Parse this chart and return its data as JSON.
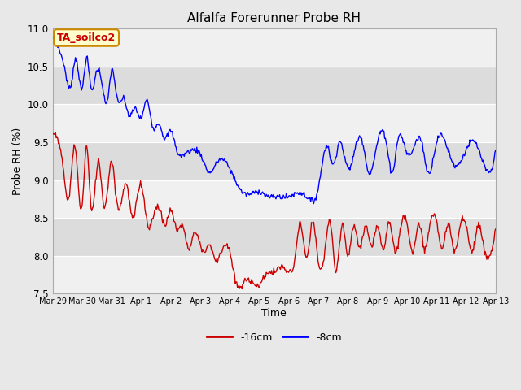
{
  "title": "Alfalfa Forerunner Probe RH",
  "ylabel": "Probe RH (%)",
  "xlabel": "Time",
  "ylim": [
    7.5,
    11.0
  ],
  "fig_bg_color": "#e8e8e8",
  "plot_bg_color": "#ffffff",
  "band_color_dark": "#dcdcdc",
  "band_color_light": "#f0f0f0",
  "legend_label_blue": "-8cm",
  "legend_label_red": "-16cm",
  "annotation_text": "TA_soilco2",
  "annotation_bg": "#ffffcc",
  "annotation_border": "#cc8800",
  "annotation_text_color": "#cc0000",
  "line_color_blue": "#0000ff",
  "line_color_red": "#cc0000",
  "x_tick_labels": [
    "Mar 29",
    "Mar 30",
    "Mar 31",
    "Apr 1",
    "Apr 2",
    "Apr 3",
    "Apr 4",
    "Apr 5",
    "Apr 6",
    "Apr 7",
    "Apr 8",
    "Apr 9",
    "Apr 10",
    "Apr 11",
    "Apr 12",
    "Apr 13"
  ],
  "x_tick_positions": [
    0,
    1,
    2,
    3,
    4,
    5,
    6,
    7,
    8,
    9,
    10,
    11,
    12,
    13,
    14,
    15
  ],
  "y_ticks": [
    7.5,
    8.0,
    8.5,
    9.0,
    9.5,
    10.0,
    10.5,
    11.0
  ],
  "n_points": 600
}
